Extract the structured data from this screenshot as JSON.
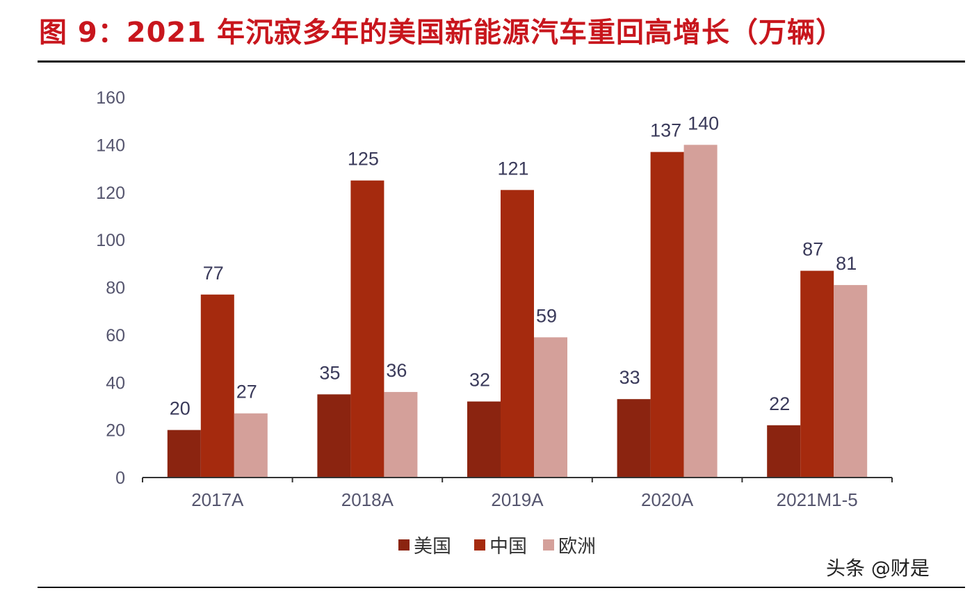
{
  "header": {
    "title": "图 9：2021 年沉寂多年的美国新能源汽车重回高增长（万辆）"
  },
  "watermark": "头条 @财是",
  "chart_data": {
    "type": "bar",
    "title": "图 9：2021 年沉寂多年的美国新能源汽车重回高增长（万辆）",
    "categories": [
      "2017A",
      "2018A",
      "2019A",
      "2020A",
      "2021M1-5"
    ],
    "series": [
      {
        "name": "美国",
        "values": [
          20,
          35,
          32,
          33,
          22
        ],
        "color": "#8b2410"
      },
      {
        "name": "中国",
        "values": [
          77,
          125,
          121,
          137,
          87
        ],
        "color": "#a52a0e"
      },
      {
        "name": "欧洲",
        "values": [
          27,
          36,
          59,
          140,
          81
        ],
        "color": "#d4a09a"
      }
    ],
    "y_ticks": [
      "0",
      "20",
      "40",
      "60",
      "80",
      "100",
      "120",
      "140",
      "160"
    ],
    "ylim": [
      0,
      160
    ],
    "xlabel": "",
    "ylabel": "",
    "grid": false,
    "legend_position": "bottom"
  }
}
